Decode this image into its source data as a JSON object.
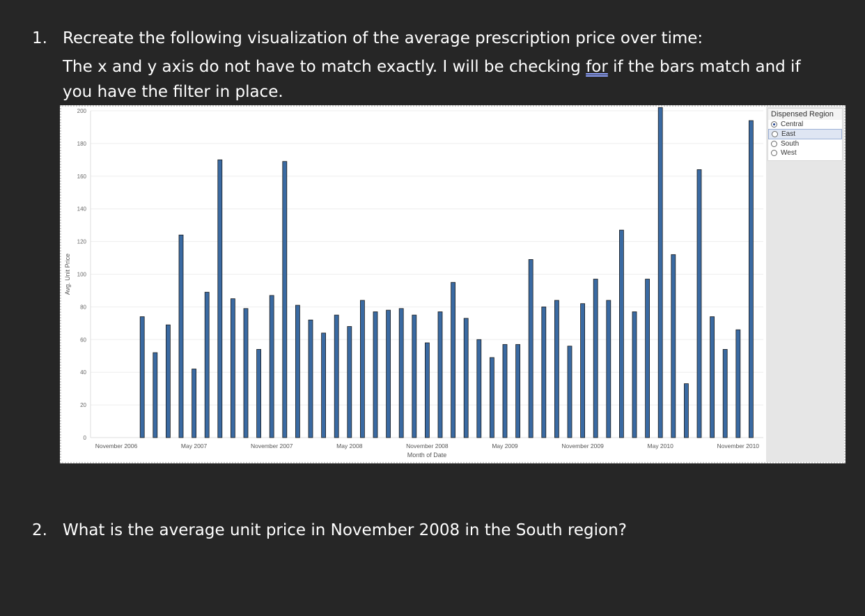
{
  "question1": {
    "number": "1.",
    "line1": "Recreate the following visualization of the average prescription price over time:",
    "line2_pre": "The x and y axis do not have to match exactly.  I will be checking ",
    "line2_underlined": "for",
    "line2_post": " if the bars match and if",
    "line3": "you have the filter in place."
  },
  "question2": {
    "number": "2.",
    "text": "What is the average unit price in November 2008 in the South region?"
  },
  "filter": {
    "title": "Dispensed Region",
    "options": [
      "Central",
      "East",
      "South",
      "West"
    ],
    "selected": "Central",
    "highlighted": "East"
  },
  "colors": {
    "bar": "#3a6aa2",
    "bar_outline": "#1a1a1a",
    "page_bg": "#262626"
  },
  "chart_data": {
    "type": "bar",
    "xlabel": "Month of Date",
    "ylabel": "Avg. Unit Price",
    "ylim": [
      0,
      200
    ],
    "yticks": [
      0,
      20,
      40,
      60,
      80,
      100,
      120,
      140,
      160,
      180,
      200
    ],
    "xtick_labels": [
      {
        "label": "November 2006",
        "at": "2006-11"
      },
      {
        "label": "May 2007",
        "at": "2007-05"
      },
      {
        "label": "November 2007",
        "at": "2007-11"
      },
      {
        "label": "May 2008",
        "at": "2008-05"
      },
      {
        "label": "November 2008",
        "at": "2008-11"
      },
      {
        "label": "May 2009",
        "at": "2009-05"
      },
      {
        "label": "November 2009",
        "at": "2009-11"
      },
      {
        "label": "May 2010",
        "at": "2010-05"
      },
      {
        "label": "November 2010",
        "at": "2010-11"
      }
    ],
    "grid": true,
    "categories": [
      "2007-01",
      "2007-02",
      "2007-03",
      "2007-04",
      "2007-05",
      "2007-06",
      "2007-07",
      "2007-08",
      "2007-09",
      "2007-10",
      "2007-11",
      "2007-12",
      "2008-01",
      "2008-02",
      "2008-03",
      "2008-04",
      "2008-05",
      "2008-06",
      "2008-07",
      "2008-08",
      "2008-09",
      "2008-10",
      "2008-11",
      "2008-12",
      "2009-01",
      "2009-02",
      "2009-03",
      "2009-04",
      "2009-05",
      "2009-06",
      "2009-07",
      "2009-08",
      "2009-09",
      "2009-10",
      "2009-11",
      "2009-12",
      "2010-01",
      "2010-02",
      "2010-03",
      "2010-04",
      "2010-05",
      "2010-06",
      "2010-07",
      "2010-08",
      "2010-09",
      "2010-10",
      "2010-11",
      "2010-12"
    ],
    "values": [
      74,
      52,
      69,
      124,
      42,
      89,
      170,
      85,
      79,
      54,
      87,
      169,
      81,
      72,
      64,
      75,
      68,
      84,
      77,
      78,
      79,
      75,
      58,
      77,
      95,
      73,
      60,
      49,
      57,
      57,
      109,
      80,
      84,
      56,
      82,
      97,
      84,
      127,
      77,
      97,
      202,
      112,
      33,
      164,
      74,
      54,
      66,
      194
    ]
  }
}
